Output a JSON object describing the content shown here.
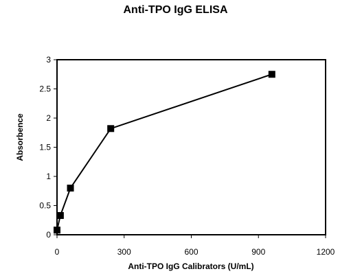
{
  "chart_data": {
    "type": "line",
    "title": "Anti-TPO IgG ELISA",
    "xlabel": "Anti-TPO IgG Calibrators (U/mL)",
    "ylabel": "Absorbence",
    "xlim": [
      0,
      1200
    ],
    "ylim": [
      0,
      3
    ],
    "xticks": [
      "0",
      "300",
      "600",
      "900",
      "1200"
    ],
    "yticks": [
      "0",
      "0.5",
      "1",
      "1.5",
      "2",
      "2.5",
      "3"
    ],
    "grid": false,
    "marker": "square",
    "series": [
      {
        "x": [
          0,
          15,
          60,
          240,
          960
        ],
        "y": [
          0.08,
          0.33,
          0.8,
          1.82,
          2.75
        ]
      }
    ],
    "colors": {
      "line": "#000000",
      "marker": "#000000"
    }
  }
}
